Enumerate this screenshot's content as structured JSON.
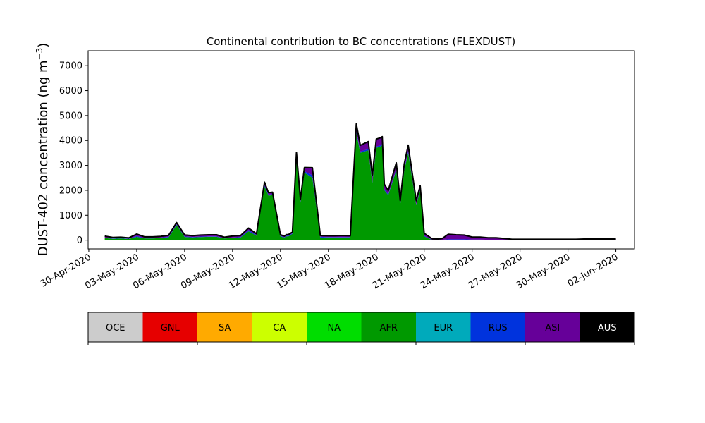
{
  "chart_data": {
    "type": "area",
    "title": "Continental contribution to BC concentrations (FLEXDUST)",
    "ylabel": "DUST-402 concentration (ng m",
    "ylabel_superscript": "−3",
    "ylabel_suffix": ")",
    "ylim": [
      -350,
      7600
    ],
    "xlim": [
      "2020-04-29T23:00",
      "2020-06-03T04:00"
    ],
    "y_ticks": [
      0,
      1000,
      2000,
      3000,
      4000,
      5000,
      6000,
      7000
    ],
    "y_tick_labels": [
      "0",
      "1000",
      "2000",
      "3000",
      "4000",
      "5000",
      "6000",
      "7000"
    ],
    "x_ticks": [
      "2020-04-30",
      "2020-05-03",
      "2020-05-06",
      "2020-05-09",
      "2020-05-12",
      "2020-05-15",
      "2020-05-18",
      "2020-05-21",
      "2020-05-24",
      "2020-05-27",
      "2020-05-30",
      "2020-06-02"
    ],
    "x_tick_labels": [
      "30-Apr-2020",
      "03-May-2020",
      "06-May-2020",
      "09-May-2020",
      "12-May-2020",
      "15-May-2020",
      "18-May-2020",
      "21-May-2020",
      "24-May-2020",
      "27-May-2020",
      "30-May-2020",
      "02-Jun-2020"
    ],
    "grid": false,
    "x": [
      "2020-05-01T00:00",
      "2020-05-01T12:00",
      "2020-05-02T00:00",
      "2020-05-02T12:00",
      "2020-05-03T00:00",
      "2020-05-03T12:00",
      "2020-05-04T00:00",
      "2020-05-04T12:00",
      "2020-05-05T00:00",
      "2020-05-05T12:00",
      "2020-05-06T00:00",
      "2020-05-06T12:00",
      "2020-05-07T00:00",
      "2020-05-07T12:00",
      "2020-05-08T00:00",
      "2020-05-08T12:00",
      "2020-05-09T00:00",
      "2020-05-09T12:00",
      "2020-05-10T00:00",
      "2020-05-10T12:00",
      "2020-05-11T00:00",
      "2020-05-11T06:00",
      "2020-05-11T12:00",
      "2020-05-12T00:00",
      "2020-05-12T06:00",
      "2020-05-12T09:00",
      "2020-05-12T12:00",
      "2020-05-12T18:00",
      "2020-05-13T00:00",
      "2020-05-13T06:00",
      "2020-05-13T12:00",
      "2020-05-14T00:00",
      "2020-05-14T12:00",
      "2020-05-15T00:00",
      "2020-05-15T09:00",
      "2020-05-15T18:00",
      "2020-05-16T00:00",
      "2020-05-16T09:00",
      "2020-05-16T18:00",
      "2020-05-17T00:00",
      "2020-05-17T12:00",
      "2020-05-17T18:00",
      "2020-05-18T00:00",
      "2020-05-18T06:00",
      "2020-05-18T09:00",
      "2020-05-18T12:00",
      "2020-05-18T18:00",
      "2020-05-19T00:00",
      "2020-05-19T06:00",
      "2020-05-19T12:00",
      "2020-05-19T18:00",
      "2020-05-20T00:00",
      "2020-05-20T12:00",
      "2020-05-20T18:00",
      "2020-05-21T00:00",
      "2020-05-21T12:00",
      "2020-05-21T21:00",
      "2020-05-22T03:00",
      "2020-05-22T12:00",
      "2020-05-23T00:00",
      "2020-05-23T12:00",
      "2020-05-24T00:00",
      "2020-05-24T12:00",
      "2020-05-25T00:00",
      "2020-05-25T12:00",
      "2020-05-26T00:00",
      "2020-05-26T12:00",
      "2020-05-27T00:00",
      "2020-05-27T12:00",
      "2020-05-28T00:00",
      "2020-05-28T12:00",
      "2020-05-29T00:00",
      "2020-05-29T12:00",
      "2020-05-30T00:00",
      "2020-05-30T12:00",
      "2020-05-31T00:00",
      "2020-05-31T12:00",
      "2020-06-01T00:00",
      "2020-06-01T12:00",
      "2020-06-02T00:00"
    ],
    "series": [
      {
        "name": "OCE",
        "color": "#cccccc",
        "values": [
          0,
          0,
          0,
          0,
          0,
          0,
          0,
          0,
          0,
          0,
          0,
          0,
          0,
          0,
          0,
          0,
          0,
          0,
          0,
          0,
          0,
          0,
          0,
          0,
          0,
          0,
          0,
          0,
          0,
          0,
          0,
          0,
          0,
          0,
          0,
          0,
          0,
          0,
          0,
          0,
          0,
          0,
          0,
          0,
          0,
          0,
          0,
          0,
          0,
          0,
          0,
          0,
          0,
          0,
          0,
          0,
          0,
          0,
          0,
          0,
          0,
          0,
          0,
          0,
          0,
          0,
          0,
          0,
          0,
          0,
          0,
          0,
          0,
          0,
          0,
          0,
          0,
          0,
          0,
          0
        ]
      },
      {
        "name": "GNL",
        "color": "#e60000",
        "values": [
          0,
          0,
          0,
          0,
          0,
          0,
          0,
          0,
          0,
          0,
          0,
          0,
          0,
          0,
          0,
          0,
          0,
          0,
          0,
          0,
          0,
          0,
          0,
          0,
          0,
          0,
          0,
          0,
          0,
          0,
          0,
          0,
          0,
          0,
          0,
          0,
          0,
          0,
          0,
          0,
          0,
          0,
          0,
          0,
          0,
          0,
          0,
          0,
          0,
          0,
          0,
          0,
          0,
          0,
          0,
          0,
          0,
          0,
          0,
          0,
          0,
          0,
          0,
          0,
          0,
          0,
          0,
          0,
          0,
          0,
          0,
          0,
          0,
          0,
          0,
          0,
          0,
          0,
          0,
          0
        ]
      },
      {
        "name": "SA",
        "color": "#ffaa00",
        "values": [
          0,
          0,
          0,
          0,
          0,
          0,
          0,
          0,
          0,
          0,
          0,
          0,
          0,
          0,
          0,
          0,
          0,
          0,
          0,
          0,
          0,
          0,
          0,
          0,
          0,
          0,
          0,
          0,
          0,
          0,
          0,
          0,
          0,
          0,
          0,
          0,
          0,
          0,
          0,
          0,
          0,
          0,
          0,
          0,
          0,
          0,
          0,
          0,
          0,
          0,
          0,
          0,
          0,
          0,
          0,
          0,
          0,
          0,
          0,
          0,
          0,
          0,
          0,
          0,
          0,
          0,
          0,
          0,
          0,
          0,
          0,
          0,
          0,
          0,
          0,
          0,
          0,
          0,
          0,
          0
        ]
      },
      {
        "name": "CA",
        "color": "#ccff00",
        "values": [
          0,
          0,
          0,
          0,
          0,
          0,
          0,
          0,
          0,
          0,
          0,
          0,
          0,
          0,
          0,
          0,
          0,
          0,
          0,
          0,
          0,
          0,
          0,
          0,
          0,
          0,
          0,
          0,
          0,
          0,
          0,
          0,
          0,
          0,
          0,
          0,
          0,
          0,
          0,
          0,
          0,
          0,
          0,
          0,
          0,
          0,
          0,
          0,
          0,
          0,
          0,
          0,
          0,
          0,
          0,
          0,
          0,
          0,
          0,
          0,
          0,
          0,
          0,
          0,
          0,
          0,
          0,
          0,
          0,
          0,
          0,
          0,
          0,
          0,
          0,
          0,
          0,
          0,
          0,
          0
        ]
      },
      {
        "name": "NA",
        "color": "#00dd00",
        "values": [
          5,
          5,
          5,
          5,
          5,
          5,
          5,
          5,
          5,
          5,
          8,
          8,
          5,
          5,
          5,
          5,
          5,
          5,
          5,
          5,
          5,
          5,
          5,
          5,
          5,
          5,
          5,
          5,
          5,
          5,
          5,
          5,
          5,
          5,
          5,
          5,
          5,
          5,
          5,
          5,
          5,
          5,
          5,
          5,
          5,
          5,
          5,
          5,
          5,
          5,
          5,
          5,
          5,
          5,
          5,
          5,
          5,
          5,
          5,
          5,
          5,
          5,
          5,
          5,
          5,
          5,
          5,
          5,
          5,
          5,
          5,
          5,
          5,
          5,
          5,
          5,
          5,
          5,
          5,
          5
        ]
      },
      {
        "name": "AFR",
        "color": "#009900",
        "values": [
          80,
          50,
          60,
          40,
          130,
          60,
          60,
          80,
          110,
          600,
          120,
          100,
          120,
          130,
          130,
          60,
          80,
          100,
          350,
          170,
          2150,
          1780,
          1800,
          140,
          100,
          150,
          150,
          250,
          3300,
          1500,
          2700,
          2500,
          100,
          100,
          100,
          100,
          100,
          100,
          4300,
          3500,
          3600,
          2300,
          3700,
          3750,
          3800,
          2000,
          1800,
          2300,
          2800,
          1400,
          2800,
          3500,
          1400,
          2000,
          150,
          0,
          0,
          0,
          0,
          0,
          0,
          0,
          0,
          0,
          0,
          0,
          0,
          0,
          0,
          0,
          0,
          0,
          0,
          0,
          0,
          0,
          0,
          0,
          0,
          0
        ]
      },
      {
        "name": "EUR",
        "color": "#00aabb",
        "values": [
          0,
          0,
          0,
          0,
          0,
          0,
          0,
          0,
          0,
          0,
          0,
          0,
          0,
          0,
          0,
          0,
          0,
          0,
          0,
          0,
          0,
          0,
          0,
          0,
          0,
          0,
          0,
          0,
          0,
          0,
          0,
          0,
          0,
          0,
          0,
          0,
          0,
          0,
          0,
          0,
          0,
          0,
          0,
          0,
          0,
          0,
          0,
          0,
          0,
          0,
          0,
          0,
          0,
          0,
          0,
          0,
          0,
          0,
          0,
          0,
          0,
          0,
          0,
          0,
          0,
          0,
          0,
          0,
          0,
          0,
          0,
          0,
          0,
          0,
          0,
          0,
          0,
          0,
          0,
          0
        ]
      },
      {
        "name": "RUS",
        "color": "#0033dd",
        "values": [
          20,
          15,
          15,
          15,
          30,
          20,
          20,
          20,
          20,
          30,
          20,
          20,
          20,
          20,
          20,
          15,
          20,
          20,
          50,
          30,
          50,
          40,
          40,
          20,
          20,
          20,
          20,
          20,
          60,
          40,
          60,
          100,
          30,
          20,
          20,
          20,
          20,
          20,
          60,
          50,
          50,
          40,
          50,
          50,
          50,
          40,
          40,
          40,
          50,
          30,
          50,
          60,
          30,
          30,
          20,
          10,
          10,
          10,
          30,
          30,
          30,
          20,
          20,
          10,
          10,
          10,
          10,
          10,
          10,
          10,
          10,
          10,
          10,
          10,
          10,
          10,
          10,
          10,
          10,
          10
        ]
      },
      {
        "name": "ASI",
        "color": "#660099",
        "values": [
          60,
          40,
          40,
          30,
          80,
          50,
          50,
          50,
          60,
          70,
          60,
          50,
          60,
          60,
          60,
          40,
          60,
          60,
          80,
          50,
          120,
          80,
          80,
          50,
          40,
          50,
          50,
          50,
          150,
          100,
          150,
          300,
          50,
          50,
          50,
          60,
          60,
          50,
          300,
          250,
          300,
          250,
          300,
          300,
          300,
          200,
          150,
          200,
          250,
          150,
          200,
          250,
          150,
          150,
          100,
          40,
          30,
          50,
          200,
          180,
          170,
          100,
          100,
          80,
          80,
          50,
          20,
          20,
          20,
          20,
          20,
          20,
          20,
          20,
          20,
          30,
          30,
          30,
          30,
          30
        ]
      },
      {
        "name": "AUS",
        "color": "#000000",
        "values": [
          0,
          0,
          0,
          0,
          0,
          0,
          0,
          0,
          0,
          0,
          0,
          0,
          0,
          0,
          0,
          0,
          0,
          0,
          0,
          0,
          0,
          0,
          0,
          0,
          0,
          0,
          0,
          0,
          0,
          0,
          0,
          0,
          0,
          0,
          0,
          0,
          0,
          0,
          0,
          0,
          0,
          0,
          0,
          0,
          0,
          0,
          0,
          0,
          0,
          0,
          0,
          0,
          0,
          0,
          0,
          0,
          0,
          0,
          0,
          0,
          0,
          0,
          0,
          0,
          0,
          0,
          0,
          0,
          0,
          0,
          0,
          0,
          0,
          0,
          0,
          0,
          0,
          0,
          0,
          0
        ]
      }
    ]
  },
  "legend": {
    "entries": [
      {
        "label": "OCE",
        "color": "#cccccc",
        "text_color": "#000000"
      },
      {
        "label": "GNL",
        "color": "#e60000",
        "text_color": "#000000"
      },
      {
        "label": "SA",
        "color": "#ffaa00",
        "text_color": "#000000"
      },
      {
        "label": "CA",
        "color": "#ccff00",
        "text_color": "#000000"
      },
      {
        "label": "NA",
        "color": "#00dd00",
        "text_color": "#000000"
      },
      {
        "label": "AFR",
        "color": "#009900",
        "text_color": "#000000"
      },
      {
        "label": "EUR",
        "color": "#00aabb",
        "text_color": "#000000"
      },
      {
        "label": "RUS",
        "color": "#0033dd",
        "text_color": "#000000"
      },
      {
        "label": "ASI",
        "color": "#660099",
        "text_color": "#000000"
      },
      {
        "label": "AUS",
        "color": "#000000",
        "text_color": "#ffffff"
      }
    ]
  }
}
